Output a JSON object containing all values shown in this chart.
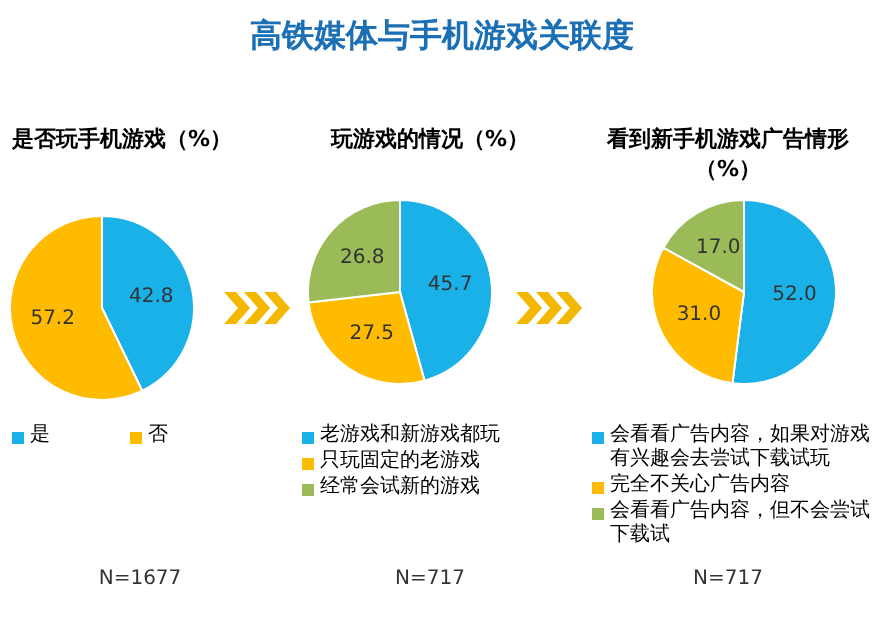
{
  "chart_data": [
    {
      "type": "pie",
      "title": "是否玩手机游戏（%）",
      "categories": [
        "是",
        "否"
      ],
      "values": [
        42.8,
        57.2
      ],
      "colors": [
        "#1ab0e8",
        "#ffbb00"
      ],
      "data_labels": true,
      "legend": "bottom",
      "annotations": [
        "N=1677"
      ]
    },
    {
      "type": "pie",
      "title": "高铁媒体与手机游戏关联度",
      "subtitle": "玩游戏的情况（%）",
      "categories": [
        "老游戏和新游戏都玩",
        "只玩固定的老游戏",
        "经常会试新的游戏"
      ],
      "values": [
        45.7,
        27.5,
        26.8
      ],
      "colors": [
        "#1ab0e8",
        "#ffbb00",
        "#9bbb59"
      ],
      "data_labels": true,
      "legend": "bottom",
      "annotations": [
        "N=717"
      ]
    },
    {
      "type": "pie",
      "title": "看到新手机游戏广告情形（%）",
      "categories": [
        "会看看广告内容，如果对游戏有兴趣会去尝试下载试玩",
        "完全不关心广告内容",
        "会看看广告内容，但不会尝试下载试"
      ],
      "values": [
        52.0,
        31.0,
        17.0
      ],
      "colors": [
        "#1ab0e8",
        "#ffbb00",
        "#9bbb59"
      ],
      "data_labels": true,
      "value_labels": [
        "52.0",
        "31.0",
        "17.0"
      ],
      "legend": "bottom",
      "annotations": [
        "N=717"
      ]
    }
  ]
}
